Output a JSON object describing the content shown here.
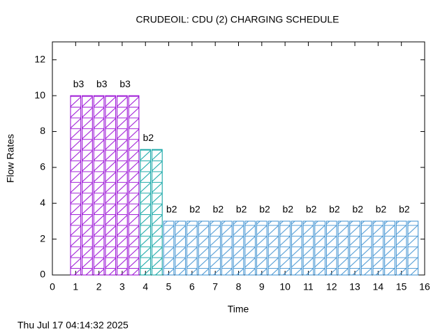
{
  "chart_data": {
    "type": "bar",
    "title": "CRUDEOIL:   CDU (2)  CHARGING SCHEDULE",
    "x_label": "Time",
    "y_label": "Flow Rates",
    "xlim": [
      0,
      16
    ],
    "xticks": [
      0,
      1,
      2,
      3,
      4,
      5,
      6,
      7,
      8,
      9,
      10,
      11,
      12,
      13,
      14,
      15,
      16
    ],
    "ylim": [
      0,
      13
    ],
    "yticks": [
      0,
      2,
      4,
      6,
      8,
      10,
      12
    ],
    "bar_width": 0.5,
    "series": [
      {
        "color": "#9400d3",
        "x": [
          1,
          1.5,
          2,
          2.5,
          3,
          3.5
        ],
        "values": [
          10,
          10,
          10,
          10,
          10,
          10
        ],
        "bar_labels": [
          "b3",
          null,
          "b3",
          null,
          "b3",
          null
        ]
      },
      {
        "color": "#009e9e",
        "x": [
          4,
          4.5
        ],
        "values": [
          7,
          7
        ],
        "bar_labels": [
          "b2",
          null
        ]
      },
      {
        "color": "#3a8fd0",
        "x": [
          5,
          5.5,
          6,
          6.5,
          7,
          7.5,
          8,
          8.5,
          9,
          9.5,
          10,
          10.5,
          11,
          11.5,
          12,
          12.5,
          13,
          13.5,
          14,
          14.5,
          15,
          15.5
        ],
        "values": [
          3,
          3,
          3,
          3,
          3,
          3,
          3,
          3,
          3,
          3,
          3,
          3,
          3,
          3,
          3,
          3,
          3,
          3,
          3,
          3,
          3,
          3
        ],
        "bar_labels": [
          "b2",
          null,
          "b2",
          null,
          "b2",
          null,
          "b2",
          null,
          "b2",
          null,
          "b2",
          null,
          "b2",
          null,
          "b2",
          null,
          "b2",
          null,
          "b2",
          null,
          "b2",
          null
        ]
      }
    ]
  },
  "timestamp": "Thu Jul 17 04:14:32 2025"
}
